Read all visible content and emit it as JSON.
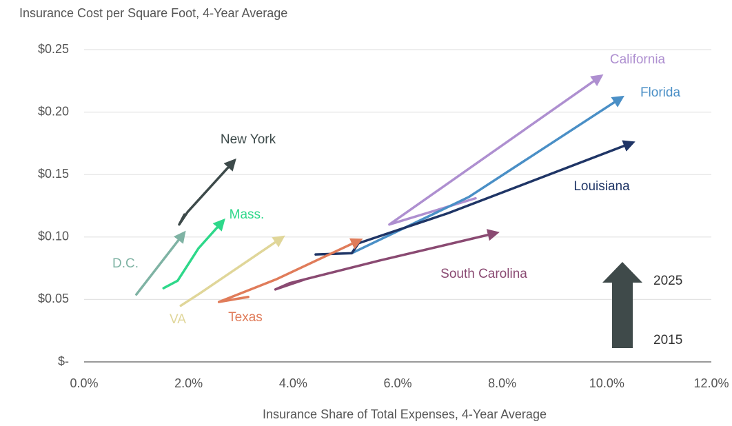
{
  "chart_data": {
    "type": "line",
    "title": "Insurance Cost per Square Foot, 4-Year Average",
    "x_label": "Insurance Share of Total Expenses, 4-Year Average",
    "xlim": [
      0,
      12
    ],
    "xticks": [
      {
        "value": 0,
        "label": "0.0%"
      },
      {
        "value": 2,
        "label": "2.0%"
      },
      {
        "value": 4,
        "label": "4.0%"
      },
      {
        "value": 6,
        "label": "6.0%"
      },
      {
        "value": 8,
        "label": "8.0%"
      },
      {
        "value": 10,
        "label": "10.0%"
      },
      {
        "value": 12,
        "label": "12.0%"
      }
    ],
    "ylim": [
      0,
      0.25
    ],
    "yticks": [
      {
        "value": 0,
        "label": "$-"
      },
      {
        "value": 0.05,
        "label": "$0.05"
      },
      {
        "value": 0.1,
        "label": "$0.10"
      },
      {
        "value": 0.15,
        "label": "$0.15"
      },
      {
        "value": 0.2,
        "label": "$0.20"
      },
      {
        "value": 0.25,
        "label": "$0.25"
      }
    ],
    "grid": true,
    "series": [
      {
        "name": "California",
        "color": "#ae8fd0",
        "x": [
          7.49,
          5.84,
          9.86
        ],
        "values": [
          0.131,
          0.11,
          0.228
        ]
      },
      {
        "name": "Florida",
        "color": "#4a8fc6",
        "x": [
          5.12,
          7.36,
          10.26
        ],
        "values": [
          0.087,
          0.132,
          0.211
        ]
      },
      {
        "name": "Louisiana",
        "color": "#1f3566",
        "x": [
          4.43,
          5.12,
          5.25,
          6.96,
          10.46
        ],
        "values": [
          0.086,
          0.087,
          0.095,
          0.119,
          0.175
        ]
      },
      {
        "name": "New York",
        "color": "#3d4a4a",
        "x": [
          1.92,
          1.82,
          1.98,
          2.85
        ],
        "values": [
          0.118,
          0.11,
          0.12,
          0.16
        ]
      },
      {
        "name": "Mass.",
        "color": "#2ed88a",
        "x": [
          1.52,
          1.79,
          2.19,
          2.64
        ],
        "values": [
          0.059,
          0.065,
          0.091,
          0.112
        ]
      },
      {
        "name": "D.C.",
        "color": "#7fb3a4",
        "x": [
          1.0,
          1.89
        ],
        "values": [
          0.054,
          0.102
        ]
      },
      {
        "name": "VA",
        "color": "#e0d699",
        "x": [
          1.85,
          2.22,
          3.77
        ],
        "values": [
          0.045,
          0.055,
          0.099
        ]
      },
      {
        "name": "Texas",
        "color": "#e07c5a",
        "x": [
          3.14,
          2.58,
          3.67,
          5.25
        ],
        "values": [
          0.052,
          0.048,
          0.066,
          0.097
        ]
      },
      {
        "name": "South Carolina",
        "color": "#8a4a72",
        "x": [
          4.22,
          3.66,
          3.93,
          5.64,
          7.86
        ],
        "values": [
          0.066,
          0.058,
          0.063,
          0.081,
          0.103
        ]
      }
    ],
    "annotations": [
      "2025",
      "2015"
    ]
  }
}
